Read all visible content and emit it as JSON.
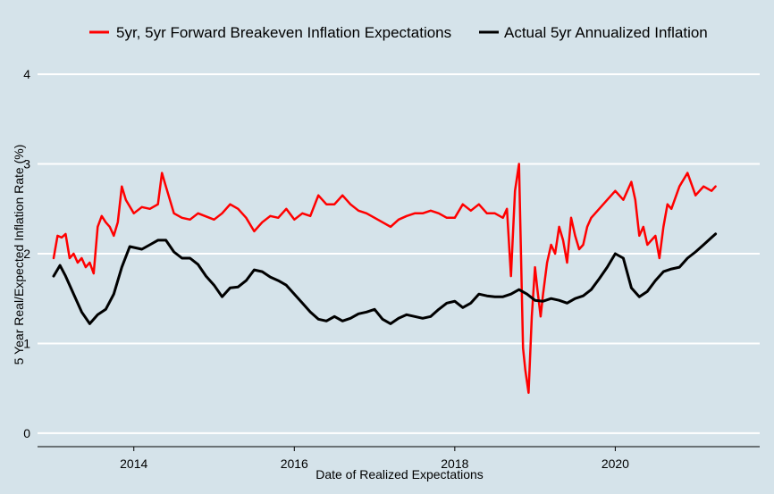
{
  "chart_data": {
    "type": "line",
    "title": "",
    "xlabel": "Date of Realized Expectations",
    "ylabel": "5 Year Real/Expected Inflation Rate (%)",
    "xlim": [
      2012.8,
      2021.8
    ],
    "ylim": [
      -0.15,
      4.15
    ],
    "x_ticks": [
      2014,
      2016,
      2018,
      2020
    ],
    "x_tick_labels": [
      "2014",
      "2016",
      "2018",
      "2020"
    ],
    "y_ticks": [
      0,
      1,
      2,
      3,
      4
    ],
    "y_tick_labels": [
      "0",
      "1",
      "2",
      "3",
      "4"
    ],
    "grid": "horizontal",
    "legend_position": "top",
    "series": [
      {
        "name": "5yr, 5yr Forward Breakeven Inflation Expectations",
        "color": "#ff0000",
        "x": [
          2013.0,
          2013.05,
          2013.1,
          2013.15,
          2013.2,
          2013.25,
          2013.3,
          2013.35,
          2013.4,
          2013.45,
          2013.5,
          2013.55,
          2013.6,
          2013.65,
          2013.7,
          2013.75,
          2013.8,
          2013.85,
          2013.9,
          2014.0,
          2014.1,
          2014.2,
          2014.3,
          2014.35,
          2014.4,
          2014.5,
          2014.6,
          2014.7,
          2014.8,
          2015.0,
          2015.1,
          2015.2,
          2015.3,
          2015.4,
          2015.5,
          2015.6,
          2015.7,
          2015.8,
          2015.9,
          2016.0,
          2016.1,
          2016.2,
          2016.3,
          2016.4,
          2016.5,
          2016.6,
          2016.7,
          2016.8,
          2016.9,
          2017.0,
          2017.1,
          2017.2,
          2017.3,
          2017.4,
          2017.5,
          2017.6,
          2017.7,
          2017.8,
          2017.9,
          2018.0,
          2018.1,
          2018.2,
          2018.3,
          2018.4,
          2018.5,
          2018.6,
          2018.65,
          2018.7,
          2018.75,
          2018.8,
          2018.85,
          2018.88,
          2018.92,
          2018.96,
          2019.0,
          2019.03,
          2019.07,
          2019.1,
          2019.15,
          2019.2,
          2019.25,
          2019.3,
          2019.35,
          2019.4,
          2019.45,
          2019.5,
          2019.55,
          2019.6,
          2019.65,
          2019.7,
          2019.8,
          2019.9,
          2020.0,
          2020.1,
          2020.2,
          2020.25,
          2020.3,
          2020.35,
          2020.4,
          2020.5,
          2020.55,
          2020.6,
          2020.65,
          2020.7,
          2020.8,
          2020.9,
          2021.0,
          2021.1,
          2021.2,
          2021.25
        ],
        "y": [
          1.95,
          2.2,
          2.18,
          2.22,
          1.95,
          2.0,
          1.9,
          1.95,
          1.85,
          1.9,
          1.78,
          2.3,
          2.42,
          2.35,
          2.3,
          2.2,
          2.35,
          2.75,
          2.6,
          2.45,
          2.52,
          2.5,
          2.55,
          2.9,
          2.75,
          2.45,
          2.4,
          2.38,
          2.45,
          2.38,
          2.45,
          2.55,
          2.5,
          2.4,
          2.25,
          2.35,
          2.42,
          2.4,
          2.5,
          2.38,
          2.45,
          2.42,
          2.65,
          2.55,
          2.55,
          2.65,
          2.55,
          2.48,
          2.45,
          2.4,
          2.35,
          2.3,
          2.38,
          2.42,
          2.45,
          2.45,
          2.48,
          2.45,
          2.4,
          2.4,
          2.55,
          2.48,
          2.55,
          2.45,
          2.45,
          2.4,
          2.5,
          1.75,
          2.7,
          3.0,
          0.95,
          0.7,
          0.45,
          1.3,
          1.85,
          1.6,
          1.3,
          1.55,
          1.9,
          2.1,
          2.0,
          2.3,
          2.15,
          1.9,
          2.4,
          2.2,
          2.05,
          2.1,
          2.3,
          2.4,
          2.5,
          2.6,
          2.7,
          2.6,
          2.8,
          2.6,
          2.2,
          2.3,
          2.1,
          2.2,
          1.95,
          2.3,
          2.55,
          2.5,
          2.75,
          2.9,
          2.65,
          2.75,
          2.7,
          2.75
        ]
      },
      {
        "name": "Actual 5yr Annualized Inflation",
        "color": "#000000",
        "x": [
          2013.0,
          2013.08,
          2013.15,
          2013.25,
          2013.35,
          2013.45,
          2013.55,
          2013.65,
          2013.75,
          2013.85,
          2013.95,
          2014.1,
          2014.2,
          2014.3,
          2014.4,
          2014.5,
          2014.6,
          2014.7,
          2014.8,
          2014.9,
          2015.0,
          2015.1,
          2015.2,
          2015.3,
          2015.4,
          2015.5,
          2015.6,
          2015.7,
          2015.8,
          2015.9,
          2016.0,
          2016.1,
          2016.2,
          2016.3,
          2016.4,
          2016.5,
          2016.6,
          2016.7,
          2016.8,
          2016.9,
          2017.0,
          2017.1,
          2017.2,
          2017.3,
          2017.4,
          2017.5,
          2017.6,
          2017.7,
          2017.8,
          2017.9,
          2018.0,
          2018.1,
          2018.2,
          2018.3,
          2018.4,
          2018.5,
          2018.6,
          2018.7,
          2018.8,
          2018.9,
          2019.0,
          2019.1,
          2019.2,
          2019.3,
          2019.4,
          2019.5,
          2019.6,
          2019.7,
          2019.8,
          2019.9,
          2020.0,
          2020.1,
          2020.2,
          2020.3,
          2020.4,
          2020.5,
          2020.6,
          2020.7,
          2020.8,
          2020.9,
          2021.0,
          2021.1,
          2021.2,
          2021.25
        ],
        "y": [
          1.75,
          1.87,
          1.75,
          1.55,
          1.35,
          1.22,
          1.32,
          1.38,
          1.55,
          1.85,
          2.08,
          2.05,
          2.1,
          2.15,
          2.15,
          2.02,
          1.95,
          1.95,
          1.88,
          1.75,
          1.65,
          1.52,
          1.62,
          1.63,
          1.7,
          1.82,
          1.8,
          1.74,
          1.7,
          1.65,
          1.55,
          1.45,
          1.35,
          1.27,
          1.25,
          1.3,
          1.25,
          1.28,
          1.33,
          1.35,
          1.38,
          1.27,
          1.22,
          1.28,
          1.32,
          1.3,
          1.28,
          1.3,
          1.38,
          1.45,
          1.47,
          1.4,
          1.45,
          1.55,
          1.53,
          1.52,
          1.52,
          1.55,
          1.6,
          1.55,
          1.48,
          1.47,
          1.5,
          1.48,
          1.45,
          1.5,
          1.53,
          1.6,
          1.72,
          1.85,
          2.0,
          1.95,
          1.62,
          1.52,
          1.58,
          1.7,
          1.8,
          1.83,
          1.85,
          1.95,
          2.02,
          2.1,
          2.18,
          2.22
        ]
      }
    ]
  }
}
